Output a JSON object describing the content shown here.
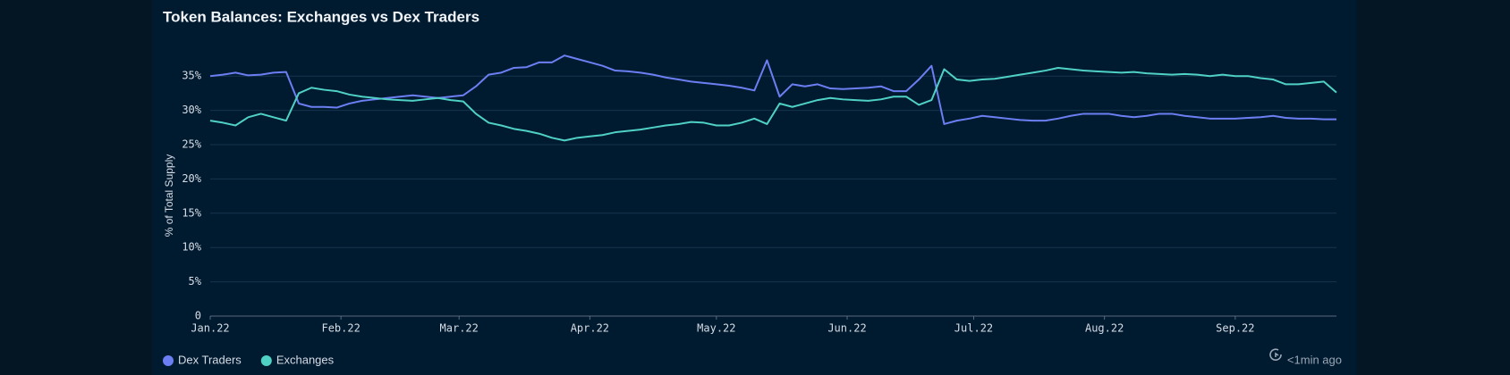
{
  "chart_data": {
    "type": "line",
    "title": "Token Balances: Exchanges vs Dex Traders",
    "y_label": "% of Total Supply",
    "updated": "<1min ago",
    "x": [
      0,
      3,
      6,
      9,
      12,
      15,
      18,
      21,
      24,
      27,
      30,
      33,
      36,
      39,
      42,
      45,
      48,
      51,
      54,
      57,
      60,
      63,
      66,
      69,
      72,
      75,
      78,
      81,
      84,
      87,
      90,
      93,
      96,
      99,
      102,
      105,
      108,
      111,
      114,
      117,
      120,
      123,
      126,
      129,
      132,
      135,
      138,
      141,
      144,
      147,
      150,
      153,
      156,
      159,
      162,
      165,
      168,
      171,
      174,
      177,
      180,
      183,
      186,
      189,
      192,
      195,
      198,
      201,
      204,
      207,
      210,
      213,
      216,
      219,
      222,
      225,
      228,
      231,
      234,
      237,
      240,
      243,
      246,
      249,
      252,
      255,
      258,
      261,
      264,
      267
    ],
    "series": [
      {
        "name": "Dex Traders",
        "color": "#6b7ff2",
        "values": [
          35,
          35.2,
          35.5,
          35.1,
          35.2,
          35.5,
          35.6,
          31,
          30.5,
          30.5,
          30.4,
          31,
          31.4,
          31.6,
          31.8,
          32,
          32.2,
          32,
          31.8,
          32,
          32.2,
          33.5,
          35.2,
          35.5,
          36.2,
          36.3,
          37,
          37,
          38,
          37.5,
          37,
          36.5,
          35.8,
          35.7,
          35.5,
          35.2,
          34.8,
          34.5,
          34.2,
          34,
          33.8,
          33.6,
          33.3,
          32.9,
          37.3,
          32,
          33.8,
          33.5,
          33.8,
          33.2,
          33.1,
          33.2,
          33.3,
          33.5,
          32.8,
          32.8,
          34.5,
          36.5,
          28,
          28.5,
          28.8,
          29.2,
          29,
          28.8,
          28.6,
          28.5,
          28.5,
          28.8,
          29.2,
          29.5,
          29.5,
          29.5,
          29.2,
          29,
          29.2,
          29.5,
          29.5,
          29.2,
          29,
          28.8,
          28.8,
          28.8,
          28.9,
          29,
          29.2,
          28.9,
          28.8,
          28.8,
          28.7,
          28.7
        ]
      },
      {
        "name": "Exchanges",
        "color": "#4fd1c5",
        "values": [
          28.5,
          28.2,
          27.8,
          29,
          29.5,
          29,
          28.5,
          32.5,
          33.3,
          33,
          32.8,
          32.3,
          32,
          31.8,
          31.6,
          31.5,
          31.4,
          31.6,
          31.8,
          31.5,
          31.3,
          29.5,
          28.2,
          27.8,
          27.3,
          27,
          26.6,
          26,
          25.6,
          26,
          26.2,
          26.4,
          26.8,
          27,
          27.2,
          27.5,
          27.8,
          28,
          28.3,
          28.2,
          27.8,
          27.8,
          28.2,
          28.8,
          28,
          31,
          30.5,
          31,
          31.5,
          31.8,
          31.6,
          31.5,
          31.4,
          31.6,
          32,
          32,
          30.8,
          31.5,
          36,
          34.5,
          34.3,
          34.5,
          34.6,
          34.9,
          35.2,
          35.5,
          35.8,
          36.2,
          36,
          35.8,
          35.7,
          35.6,
          35.5,
          35.6,
          35.4,
          35.3,
          35.2,
          35.3,
          35.2,
          35,
          35.2,
          35,
          35,
          34.7,
          34.5,
          33.8,
          33.8,
          34,
          34.2,
          32.6
        ]
      }
    ],
    "xlim": [
      0,
      267
    ],
    "xticks": [
      {
        "value": 0,
        "label": "Jan.22"
      },
      {
        "value": 31,
        "label": "Feb.22"
      },
      {
        "value": 59,
        "label": "Mar.22"
      },
      {
        "value": 90,
        "label": "Apr.22"
      },
      {
        "value": 120,
        "label": "May.22"
      },
      {
        "value": 151,
        "label": "Jun.22"
      },
      {
        "value": 181,
        "label": "Jul.22"
      },
      {
        "value": 212,
        "label": "Aug.22"
      },
      {
        "value": 243,
        "label": "Sep.22"
      }
    ],
    "ylim": [
      0,
      37.5
    ],
    "yticks": [
      0,
      {
        "value": 5,
        "label": "5%"
      },
      {
        "value": 10,
        "label": "10%"
      },
      {
        "value": 15,
        "label": "15%"
      },
      {
        "value": 20,
        "label": "20%"
      },
      {
        "value": 25,
        "label": "25%"
      },
      {
        "value": 30,
        "label": "30%"
      },
      {
        "value": 35,
        "label": "35%"
      }
    ],
    "grid": true,
    "legend": "bottom-left"
  }
}
